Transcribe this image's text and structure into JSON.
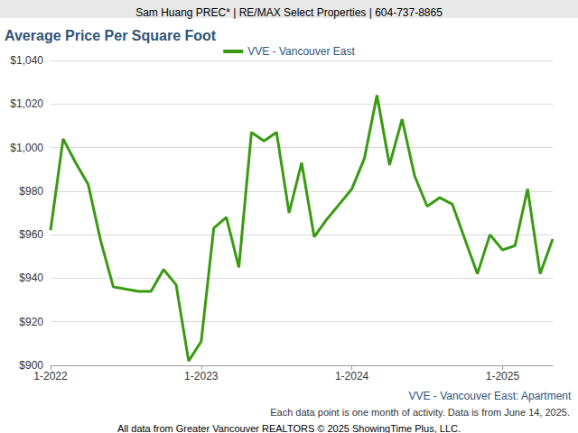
{
  "chart_data": {
    "type": "line",
    "header": "Sam Huang PREC* | RE/MAX Select Properties | 604-737-8865",
    "title": "Average Price Per Square Foot",
    "subtitle": "VVE - Vancouver East: Apartment",
    "notes": [
      "Each data point is one month of activity. Data is from June 14, 2025.",
      "All data from Greater Vancouver REALTORS © 2025 ShowingTime Plus, LLC."
    ],
    "categories": [
      "1-2022",
      null,
      null,
      null,
      null,
      null,
      null,
      null,
      null,
      null,
      null,
      null,
      "1-2023",
      null,
      null,
      null,
      null,
      null,
      null,
      null,
      null,
      null,
      null,
      null,
      "1-2024",
      null,
      null,
      null,
      null,
      null,
      null,
      null,
      null,
      null,
      null,
      null,
      "1-2025",
      null,
      null,
      null,
      null
    ],
    "series": [
      {
        "name": "VVE - Vancouver East",
        "color": "#3a9a12",
        "values": [
          962,
          1004,
          993,
          983,
          957,
          936,
          935,
          934,
          934,
          944,
          937,
          902,
          911,
          963,
          968,
          945,
          1007,
          1003,
          1007,
          970,
          993,
          959,
          967,
          974,
          981,
          995,
          1024,
          992,
          1013,
          987,
          973,
          977,
          974,
          958,
          942,
          960,
          953,
          955,
          981,
          942,
          958
        ]
      }
    ],
    "ylim": [
      900,
      1040
    ],
    "yticks": [
      {
        "value": 900,
        "label": "$900"
      },
      {
        "value": 920,
        "label": "$920"
      },
      {
        "value": 940,
        "label": "$940"
      },
      {
        "value": 960,
        "label": "$960"
      },
      {
        "value": 980,
        "label": "$980"
      },
      {
        "value": 1000,
        "label": "$1,000"
      },
      {
        "value": 1020,
        "label": "$1,020"
      },
      {
        "value": 1040,
        "label": "$1,040"
      }
    ],
    "grid": true,
    "legend": "top"
  }
}
